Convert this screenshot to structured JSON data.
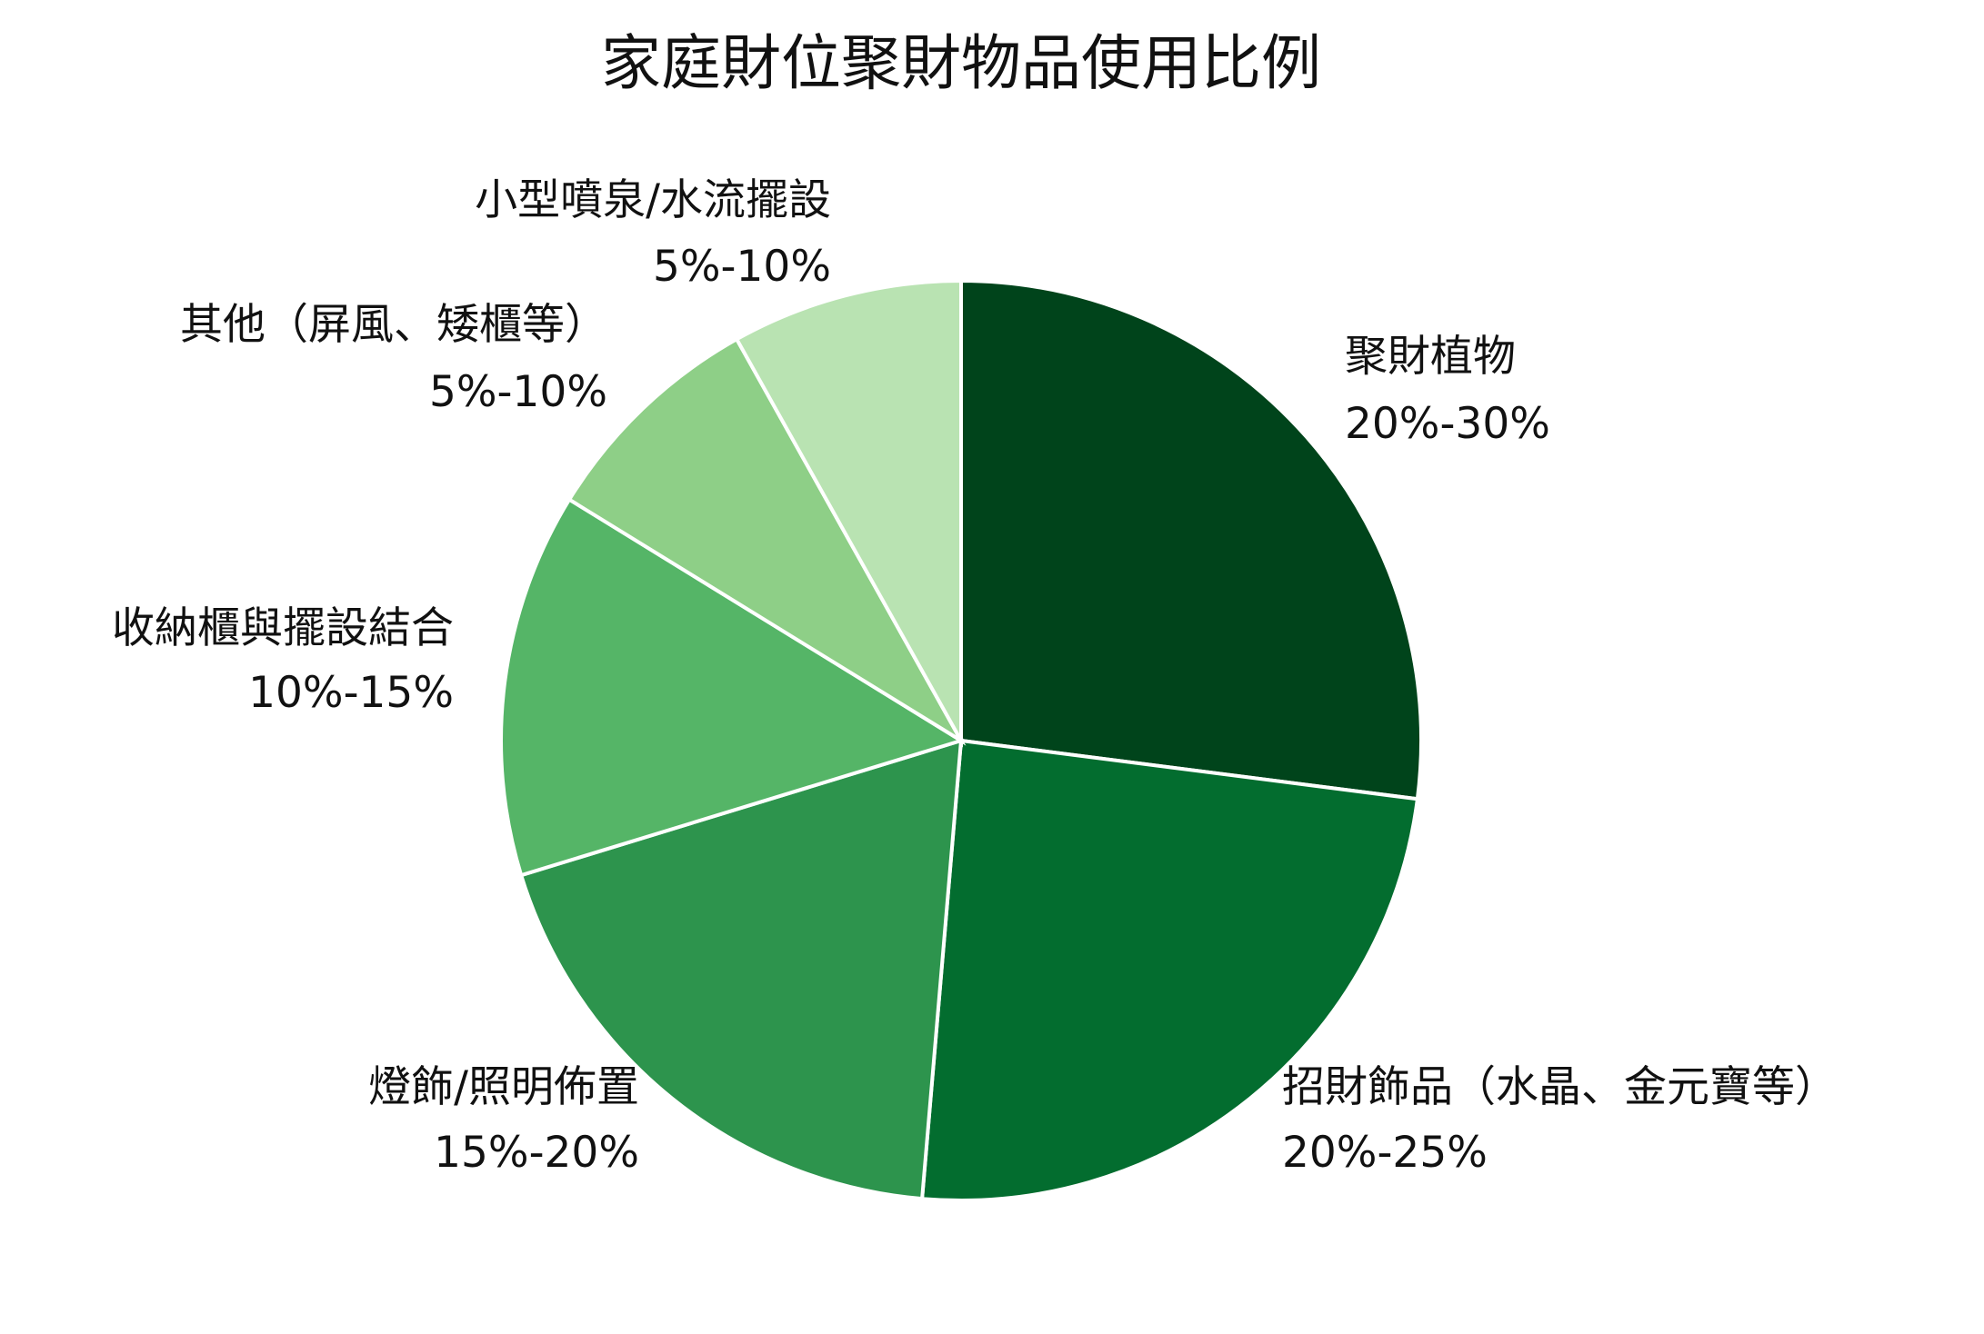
{
  "chart_data": {
    "type": "pie",
    "title": "家庭財位聚財物品使用比例",
    "start_angle": "top",
    "direction": "clockwise",
    "slices": [
      {
        "label": "聚財植物",
        "range_text": "20%-30%",
        "value": 25,
        "color": "#00441b"
      },
      {
        "label": "招財飾品（水晶、金元寶等）",
        "range_text": "20%-25%",
        "value": 22.5,
        "color": "#036d2f"
      },
      {
        "label": "燈飾/照明佈置",
        "range_text": "15%-20%",
        "value": 17.5,
        "color": "#2d944d"
      },
      {
        "label": "收納櫃與擺設結合",
        "range_text": "10%-15%",
        "value": 12.5,
        "color": "#55b567"
      },
      {
        "label": "其他（屏風、矮櫃等）",
        "range_text": "5%-10%",
        "value": 7.5,
        "color": "#8ecf87"
      },
      {
        "label": "小型噴泉/水流擺設",
        "range_text": "5%-10%",
        "value": 7.5,
        "color": "#b9e3b2"
      }
    ],
    "slice_edge_color": "#ffffff"
  }
}
